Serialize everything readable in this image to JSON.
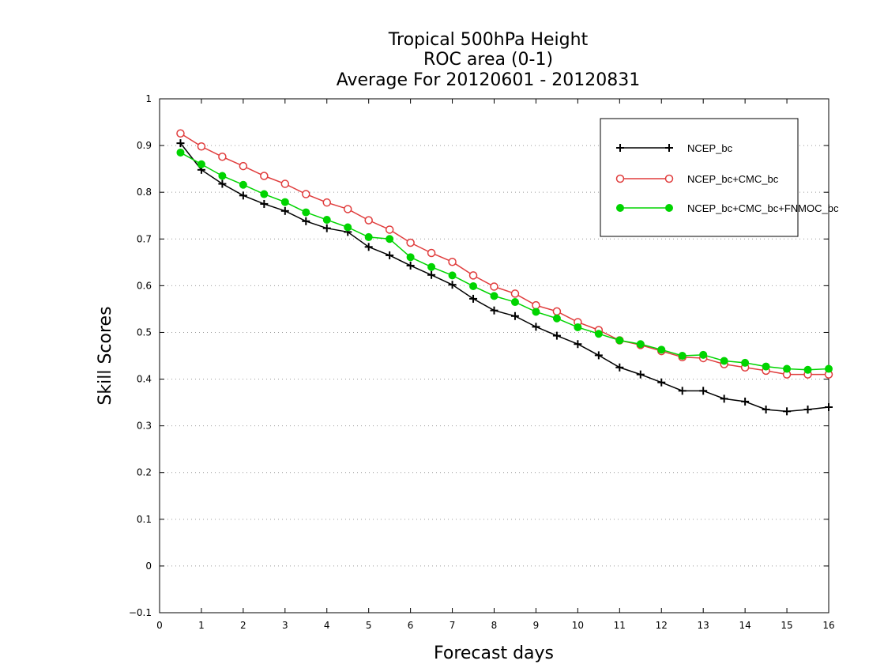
{
  "chart_data": {
    "type": "line",
    "title": [
      "Tropical 500hPa Height",
      "ROC area (0-1)",
      "Average For 20120601 - 20120831"
    ],
    "xlabel": "Forecast days",
    "ylabel": "Skill Scores",
    "xlim": [
      0,
      16
    ],
    "ylim": [
      -0.1,
      1
    ],
    "xticks": [
      "0",
      "1",
      "2",
      "3",
      "4",
      "5",
      "6",
      "7",
      "8",
      "9",
      "10",
      "11",
      "12",
      "13",
      "14",
      "15",
      "16"
    ],
    "yticks": [
      "−0.1",
      "0",
      "0.1",
      "0.2",
      "0.3",
      "0.4",
      "0.5",
      "0.6",
      "0.7",
      "0.8",
      "0.9",
      "1"
    ],
    "grid": "horizontal-dotted",
    "legend_position": "top-right",
    "x": [
      0.5,
      1,
      1.5,
      2,
      2.5,
      3,
      3.5,
      4,
      4.5,
      5,
      5.5,
      6,
      6.5,
      7,
      7.5,
      8,
      8.5,
      9,
      9.5,
      10,
      10.5,
      11,
      11.5,
      12,
      12.5,
      13,
      13.5,
      14,
      14.5,
      15,
      15.5,
      16
    ],
    "series": [
      {
        "name": "NCEP_bc",
        "color": "#000000",
        "marker": "plus",
        "values": [
          0.905,
          0.848,
          0.818,
          0.793,
          0.775,
          0.76,
          0.738,
          0.723,
          0.715,
          0.683,
          0.665,
          0.643,
          0.623,
          0.602,
          0.572,
          0.547,
          0.535,
          0.512,
          0.493,
          0.475,
          0.451,
          0.425,
          0.41,
          0.393,
          0.375,
          0.375,
          0.358,
          0.352,
          0.335,
          0.331,
          0.335,
          0.34
        ]
      },
      {
        "name": "NCEP_bc+CMC_bc",
        "color": "#e03c3c",
        "marker": "open-circle",
        "values": [
          0.926,
          0.898,
          0.876,
          0.856,
          0.835,
          0.818,
          0.796,
          0.778,
          0.764,
          0.74,
          0.72,
          0.692,
          0.67,
          0.651,
          0.622,
          0.598,
          0.583,
          0.558,
          0.545,
          0.522,
          0.505,
          0.483,
          0.473,
          0.46,
          0.447,
          0.445,
          0.432,
          0.425,
          0.418,
          0.41,
          0.41,
          0.41
        ]
      },
      {
        "name": "NCEP_bc+CMC_bc+FNMOC_bc",
        "color": "#00d400",
        "marker": "filled-circle",
        "values": [
          0.885,
          0.86,
          0.835,
          0.816,
          0.796,
          0.779,
          0.757,
          0.741,
          0.725,
          0.704,
          0.7,
          0.661,
          0.64,
          0.622,
          0.599,
          0.578,
          0.565,
          0.544,
          0.53,
          0.511,
          0.497,
          0.483,
          0.475,
          0.463,
          0.45,
          0.452,
          0.439,
          0.435,
          0.427,
          0.422,
          0.42,
          0.422
        ]
      }
    ]
  }
}
